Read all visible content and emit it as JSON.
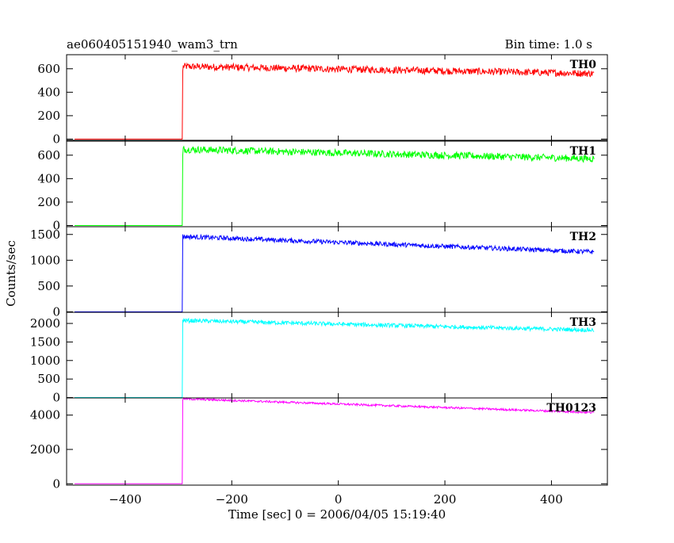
{
  "chart_data": {
    "type": "line",
    "title": "ae060405151940_wam3_trn",
    "bin_time_label": "Bin time: 1.0 s",
    "xlabel": "Time [sec] 0 = 2006/04/05 15:19:40",
    "ylabel": "Counts/sec",
    "xlim": [
      -510,
      505
    ],
    "x_ticks": [
      -400,
      -200,
      0,
      200,
      400
    ],
    "x_tick_labels": [
      "−400",
      "−200",
      "0",
      "200",
      "400"
    ],
    "grid": false,
    "series": [
      {
        "name": "TH0",
        "color": "#ff0000",
        "ylim": [
          -10,
          720
        ],
        "y_ticks": [
          0,
          200,
          400,
          600
        ],
        "y_tick_labels": [
          "0",
          "200",
          "400",
          "600"
        ],
        "x_start": -495,
        "x_end": 480,
        "onset_x": -292,
        "pre_level": 0,
        "onset_peak": 580,
        "post_start_level": 620,
        "post_end_level": 560,
        "noise_amplitude": 30
      },
      {
        "name": "TH1",
        "color": "#00ff00",
        "ylim": [
          -10,
          720
        ],
        "y_ticks": [
          0,
          200,
          400,
          600
        ],
        "y_tick_labels": [
          "0",
          "200",
          "400",
          "600"
        ],
        "x_start": -495,
        "x_end": 480,
        "onset_x": -292,
        "pre_level": 0,
        "onset_peak": 600,
        "post_start_level": 650,
        "post_end_level": 570,
        "noise_amplitude": 30
      },
      {
        "name": "TH2",
        "color": "#0000ff",
        "ylim": [
          -10,
          1650
        ],
        "y_ticks": [
          0,
          500,
          1000,
          1500
        ],
        "y_tick_labels": [
          "0",
          "500",
          "1000",
          "1500"
        ],
        "x_start": -495,
        "x_end": 480,
        "onset_x": -292,
        "pre_level": 0,
        "onset_peak": 1500,
        "post_start_level": 1460,
        "post_end_level": 1160,
        "noise_amplitude": 45
      },
      {
        "name": "TH3",
        "color": "#00ffff",
        "ylim": [
          -10,
          2300
        ],
        "y_ticks": [
          0,
          500,
          1000,
          1500,
          2000
        ],
        "y_tick_labels": [
          "0",
          "500",
          "1000",
          "1500",
          "2000"
        ],
        "x_start": -495,
        "x_end": 480,
        "onset_x": -292,
        "pre_level": 0,
        "onset_peak": 2100,
        "post_start_level": 2080,
        "post_end_level": 1820,
        "noise_amplitude": 55
      },
      {
        "name": "TH0123",
        "color": "#ff00ff",
        "ylim": [
          -80,
          5000
        ],
        "y_ticks": [
          0,
          2000,
          4000
        ],
        "y_tick_labels": [
          "0",
          "2000",
          "4000"
        ],
        "x_start": -495,
        "x_end": 480,
        "onset_x": -292,
        "pre_level": 0,
        "onset_peak": 4900,
        "post_start_level": 4950,
        "post_end_level": 4150,
        "noise_amplitude": 60
      }
    ]
  }
}
